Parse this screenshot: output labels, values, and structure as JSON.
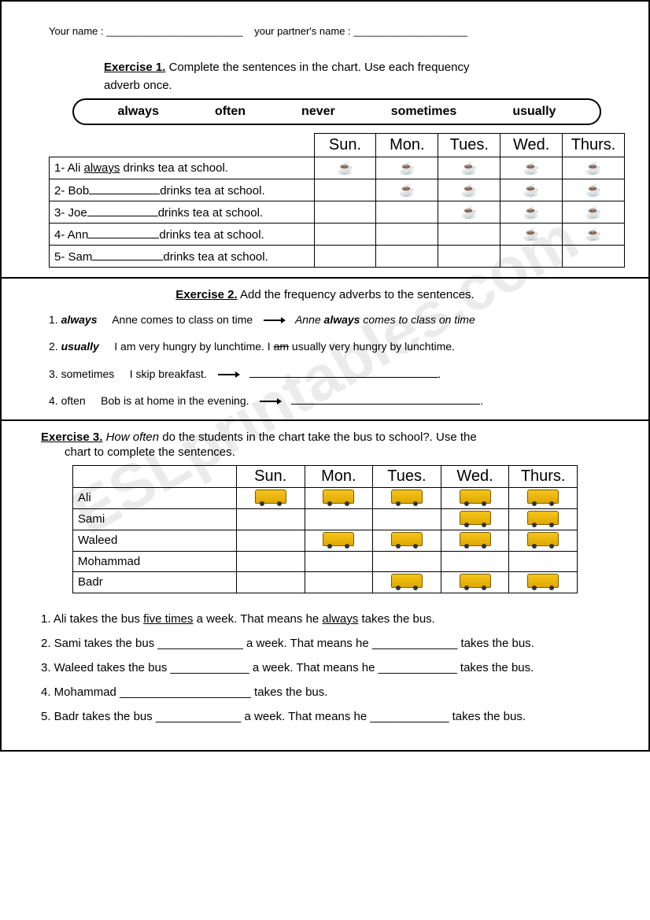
{
  "header": {
    "your_name_label": "Your name : ________________________",
    "partner_name_label": "your partner's name : ____________________"
  },
  "watermark": "ESLprintables.com",
  "ex1": {
    "label": "Exercise 1.",
    "instruction_line1": "Complete the sentences in the chart. Use each frequency",
    "instruction_line2": "adverb once.",
    "words": [
      "always",
      "often",
      "never",
      "sometimes",
      "usually"
    ],
    "days": [
      "Sun.",
      "Mon.",
      "Tues.",
      "Wed.",
      "Thurs."
    ],
    "rows": [
      {
        "pre": "1- Ali ",
        "mid_underlined": "always",
        "post": " drinks tea at school.",
        "marks": [
          true,
          true,
          true,
          true,
          true
        ]
      },
      {
        "pre": "2- Bob",
        "blank": true,
        "post": "drinks tea at school.",
        "marks": [
          false,
          true,
          true,
          true,
          true
        ]
      },
      {
        "pre": "3- Joe",
        "blank": true,
        "post": "drinks tea at school.",
        "marks": [
          false,
          false,
          true,
          true,
          true
        ]
      },
      {
        "pre": "4- Ann",
        "blank": true,
        "post": "drinks tea at school.",
        "marks": [
          false,
          false,
          false,
          true,
          true
        ]
      },
      {
        "pre": "5- Sam",
        "blank": true,
        "post": "drinks tea at school.",
        "marks": [
          false,
          false,
          false,
          false,
          false
        ]
      }
    ]
  },
  "ex2": {
    "label": "Exercise 2.",
    "instruction": "Add the frequency adverbs to the sentences.",
    "rows": [
      {
        "num": "1.",
        "adv": "always",
        "adv_style": "bi",
        "sent": "Anne comes to class on time",
        "answer_pre": "Anne ",
        "answer_bold": "always",
        "answer_post": " comes to class on time",
        "answer_style": "italic"
      },
      {
        "num": "2.",
        "adv": "usually",
        "adv_style": "bi",
        "sent": "I am very hungry by lunchtime.",
        "answer_inline": " I ",
        "answer_strike": "am",
        "answer_rest": " usually very hungry by lunchtime."
      },
      {
        "num": "3.",
        "adv": "sometimes",
        "adv_style": "",
        "sent": "I skip breakfast.",
        "blank": true
      },
      {
        "num": "4.",
        "adv": "often",
        "adv_style": "",
        "sent": "Bob is at home in the evening.",
        "blank": true
      }
    ]
  },
  "ex3": {
    "label": "Exercise 3.",
    "instruction_line1_pre": "",
    "instruction_italic": "How often",
    "instruction_line1_post": " do the students in the chart take the bus to school?. Use the",
    "instruction_line2": "chart to complete the sentences.",
    "days": [
      "Sun.",
      "Mon.",
      "Tues.",
      "Wed.",
      "Thurs."
    ],
    "rows": [
      {
        "name": "Ali",
        "marks": [
          true,
          true,
          true,
          true,
          true
        ]
      },
      {
        "name": "Sami",
        "marks": [
          false,
          false,
          false,
          true,
          true
        ]
      },
      {
        "name": "Waleed",
        "marks": [
          false,
          true,
          true,
          true,
          true
        ]
      },
      {
        "name": "Mohammad",
        "marks": [
          false,
          false,
          false,
          false,
          false
        ]
      },
      {
        "name": "Badr",
        "marks": [
          false,
          false,
          true,
          true,
          true
        ]
      }
    ],
    "sentences": [
      {
        "text_html": "1. Ali takes the bus <span class='underline'>five times</span> a week. That means he <span class='underline'>always</span> takes the bus."
      },
      {
        "text_html": "2. Sami takes the bus _____________ a week. That means he _____________ takes the bus."
      },
      {
        "text_html": "3. Waleed takes the bus ____________ a week. That means he ____________ takes the bus."
      },
      {
        "text_html": "4. Mohammad ____________________ takes the bus."
      },
      {
        "text_html": "5. Badr takes the bus _____________ a week. That means he ____________ takes the bus."
      }
    ]
  }
}
